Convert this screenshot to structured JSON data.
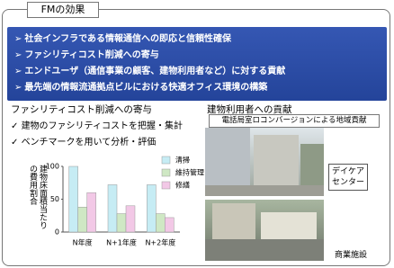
{
  "header": {
    "title": "FMの効果"
  },
  "banner": {
    "items": [
      "社会インフラである情報通信への即応と信頼性確保",
      "ファシリティコスト削減への寄与",
      "エンドユーザ（通信事業の顧客、建物利用者など）に対する貢献",
      "最先端の情報流通拠点ビルにおける快適オフィス環境の構築"
    ]
  },
  "left": {
    "title": "ファシリティコスト削減への寄与",
    "checks": [
      "建物のファシリティコストを把握・集計",
      "ベンチマークを用いて分析・評価"
    ]
  },
  "chart_data": {
    "type": "bar",
    "y_label": "建物床面積当たりの費用割合",
    "categories": [
      "N年度",
      "N+1年度",
      "N+2年度"
    ],
    "series": [
      {
        "name": "清掃",
        "color": "#c6ecf4",
        "values": [
          100,
          72,
          72
        ]
      },
      {
        "name": "維持管理",
        "color": "#cfe8c4",
        "values": [
          38,
          28,
          28
        ]
      },
      {
        "name": "修繕",
        "color": "#f2c8e6",
        "values": [
          60,
          40,
          22
        ]
      }
    ],
    "ylim": [
      0,
      100
    ],
    "yticks": [
      0,
      50,
      100
    ]
  },
  "right": {
    "title": "建物利用者への貢献",
    "subtitle": "電話局室ロコンバージョンによる地域貢献",
    "photo_labels": [
      "デイケアセンター",
      "商業施設"
    ]
  }
}
